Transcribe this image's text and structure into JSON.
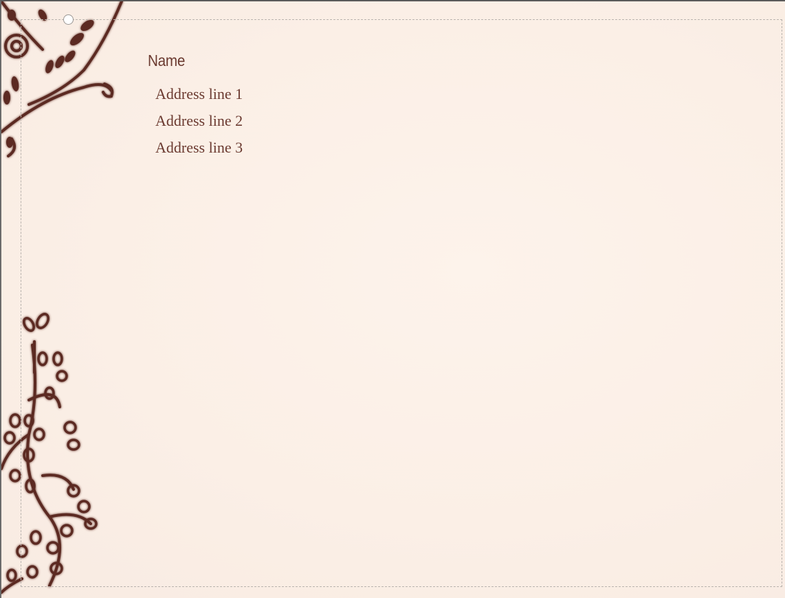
{
  "card": {
    "name": "Name",
    "address_lines": [
      "Address line 1",
      "Address line 2",
      "Address line 3"
    ]
  },
  "colors": {
    "background": "#fbefe6",
    "text": "#6b3a30",
    "ornament": "#5b2a22",
    "selection_border": "#b9b3ae"
  },
  "icons": {
    "rotate_handle": "rotate-handle-icon",
    "top_left_ornament": "mandala-ornament",
    "left_ornament": "floral-vine-ornament"
  }
}
